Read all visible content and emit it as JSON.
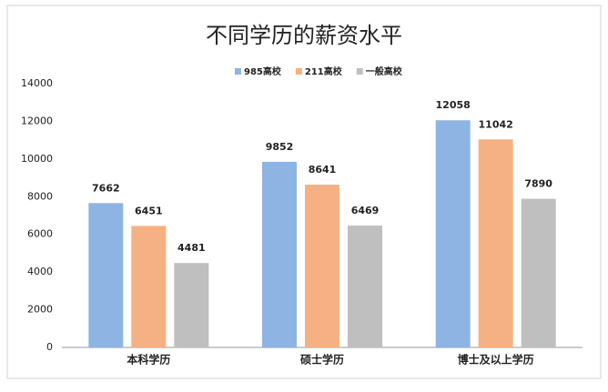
{
  "chart_data": {
    "type": "bar",
    "title": "不同学历的薪资水平",
    "categories": [
      "本科学历",
      "硕士学历",
      "博士及以上学历"
    ],
    "series": [
      {
        "name": "985高校",
        "color": "#8eb4e3",
        "values": [
          7662,
          9852,
          12058
        ]
      },
      {
        "name": "211高校",
        "color": "#f5b183",
        "values": [
          6451,
          8641,
          11042
        ]
      },
      {
        "name": "一般高校",
        "color": "#bfbfbf",
        "values": [
          4481,
          6469,
          7890
        ]
      }
    ],
    "ylim": [
      0,
      14000
    ],
    "yticks": [
      0,
      2000,
      4000,
      6000,
      8000,
      10000,
      12000,
      14000
    ],
    "grid": false,
    "legend": "top"
  }
}
